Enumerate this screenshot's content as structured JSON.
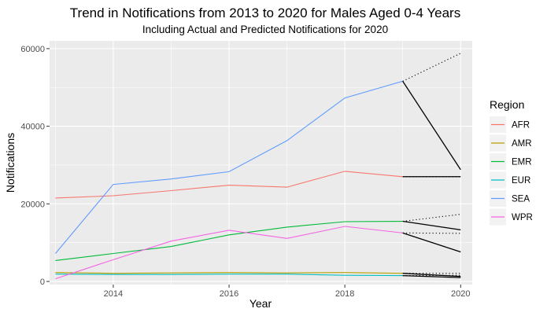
{
  "chart_data": {
    "type": "line",
    "title": "Trend in Notifications from 2013 to 2020 for Males Aged 0-4 Years",
    "subtitle": "Including Actual and Predicted Notifications for 2020",
    "xlabel": "Year",
    "ylabel": "Notifications",
    "xlim": [
      2012.9,
      2020.2
    ],
    "ylim": [
      -800,
      62000
    ],
    "x_ticks": [
      2014,
      2016,
      2018,
      2020
    ],
    "y_ticks": [
      0,
      20000,
      40000,
      60000
    ],
    "grid": true,
    "legend": {
      "title": "Region",
      "position": "right"
    },
    "series": [
      {
        "name": "AFR",
        "color": "#F8766D",
        "x": [
          2013,
          2014,
          2015,
          2016,
          2017,
          2018,
          2019
        ],
        "y": [
          21500,
          22100,
          23400,
          24800,
          24300,
          28400,
          27000
        ]
      },
      {
        "name": "AMR",
        "color": "#B79F00",
        "x": [
          2013,
          2014,
          2015,
          2016,
          2017,
          2018,
          2019
        ],
        "y": [
          2300,
          2100,
          2200,
          2300,
          2200,
          2300,
          2100
        ]
      },
      {
        "name": "EMR",
        "color": "#00BA38",
        "x": [
          2013,
          2014,
          2015,
          2016,
          2017,
          2018,
          2019
        ],
        "y": [
          5400,
          7200,
          9000,
          12000,
          14000,
          15400,
          15500
        ]
      },
      {
        "name": "EUR",
        "color": "#00BFC4",
        "x": [
          2013,
          2014,
          2015,
          2016,
          2017,
          2018,
          2019
        ],
        "y": [
          1900,
          1800,
          1800,
          1900,
          1900,
          1600,
          1500
        ]
      },
      {
        "name": "SEA",
        "color": "#619CFF",
        "x": [
          2013,
          2014,
          2015,
          2016,
          2017,
          2018,
          2019
        ],
        "y": [
          7200,
          25000,
          26400,
          28300,
          36300,
          47300,
          51600
        ]
      },
      {
        "name": "WPR",
        "color": "#F564E3",
        "x": [
          2013,
          2014,
          2015,
          2016,
          2017,
          2018,
          2019
        ],
        "y": [
          700,
          5600,
          10400,
          13200,
          11100,
          14200,
          12500
        ]
      }
    ],
    "actual_2020": [
      {
        "name": "AFR",
        "y": [
          27000,
          27000
        ]
      },
      {
        "name": "AMR",
        "y": [
          2100,
          1300
        ]
      },
      {
        "name": "EMR",
        "y": [
          15500,
          13300
        ]
      },
      {
        "name": "EUR",
        "y": [
          1500,
          1000
        ]
      },
      {
        "name": "SEA",
        "y": [
          51600,
          28800
        ]
      },
      {
        "name": "WPR",
        "y": [
          12500,
          7600
        ]
      }
    ],
    "predicted_2020": [
      {
        "name": "AFR",
        "y": [
          27000,
          27000
        ]
      },
      {
        "name": "AMR",
        "y": [
          2100,
          2100
        ]
      },
      {
        "name": "EMR",
        "y": [
          15500,
          17300
        ]
      },
      {
        "name": "EUR",
        "y": [
          1500,
          1600
        ]
      },
      {
        "name": "SEA",
        "y": [
          51600,
          58800
        ]
      },
      {
        "name": "WPR",
        "y": [
          12500,
          12400
        ]
      }
    ],
    "segment_x": [
      2019,
      2020
    ],
    "colors": {
      "panel": "#EBEBEB",
      "grid_major": "#FFFFFF",
      "actual_2020": "#000000",
      "predicted_2020": "#000000"
    }
  }
}
